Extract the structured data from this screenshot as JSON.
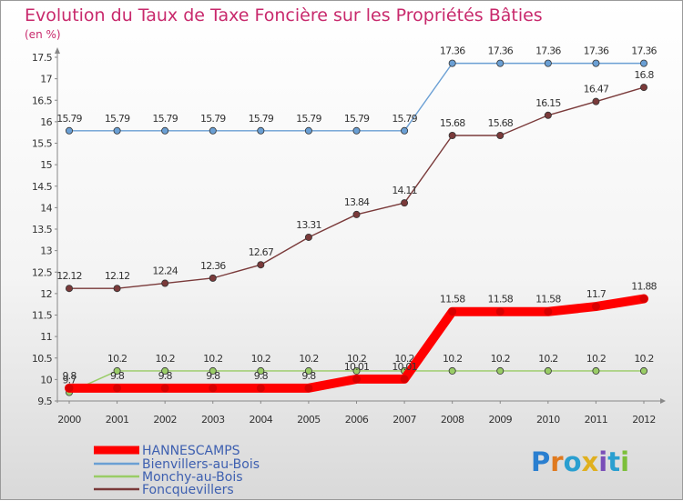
{
  "chart_data": {
    "type": "line",
    "title": "Evolution du Taux de Taxe Foncière sur les Propriétés Bâties",
    "unit_label": "(en %)",
    "x": [
      "2000",
      "2001",
      "2002",
      "2003",
      "2004",
      "2005",
      "2006",
      "2007",
      "2008",
      "2009",
      "2010",
      "2011",
      "2012"
    ],
    "y_ticks": [
      "9.5",
      "10",
      "10.5",
      "11",
      "11.5",
      "12",
      "12.5",
      "13",
      "13.5",
      "14",
      "14.5",
      "15",
      "15.5",
      "16",
      "16.5",
      "17",
      "17.5"
    ],
    "ylim": [
      9.5,
      17.5
    ],
    "grid": false,
    "legend_position": "bottom-left",
    "series": [
      {
        "name": "HANNESCAMPS",
        "color": "#ff0000",
        "values": [
          9.8,
          9.8,
          9.8,
          9.8,
          9.8,
          9.8,
          10.01,
          10.01,
          11.58,
          11.58,
          11.58,
          11.7,
          11.88
        ],
        "labels": [
          "9.8",
          "9.8",
          "9.8",
          "9.8",
          "9.8",
          "9.8",
          "10.01",
          "10.01",
          "11.58",
          "11.58",
          "11.58",
          "11.7",
          "11.88"
        ]
      },
      {
        "name": "Bienvillers-au-Bois",
        "color": "#6a9fd4",
        "values": [
          15.79,
          15.79,
          15.79,
          15.79,
          15.79,
          15.79,
          15.79,
          15.79,
          17.36,
          17.36,
          17.36,
          17.36,
          17.36
        ],
        "labels": [
          "15.79",
          "15.79",
          "15.79",
          "15.79",
          "15.79",
          "15.79",
          "15.79",
          "15.79",
          "17.36",
          "17.36",
          "17.36",
          "17.36",
          "17.36"
        ]
      },
      {
        "name": "Monchy-au-Bois",
        "color": "#99cc66",
        "values": [
          9.7,
          10.2,
          10.2,
          10.2,
          10.2,
          10.2,
          10.2,
          10.2,
          10.2,
          10.2,
          10.2,
          10.2,
          10.2
        ],
        "labels": [
          "9.7",
          "10.2",
          "10.2",
          "10.2",
          "10.2",
          "10.2",
          "10.2",
          "10.2",
          "10.2",
          "10.2",
          "10.2",
          "10.2",
          "10.2"
        ]
      },
      {
        "name": "Foncquevillers",
        "color": "#7a3a3a",
        "values": [
          12.12,
          12.12,
          12.24,
          12.36,
          12.67,
          13.31,
          13.84,
          14.11,
          15.68,
          15.68,
          16.15,
          16.47,
          16.8
        ],
        "labels": [
          "12.12",
          "12.12",
          "12.24",
          "12.36",
          "12.67",
          "13.31",
          "13.84",
          "14.11",
          "15.68",
          "15.68",
          "16.15",
          "16.47",
          "16.8"
        ]
      }
    ]
  },
  "logo": {
    "text": "Proxiti"
  }
}
